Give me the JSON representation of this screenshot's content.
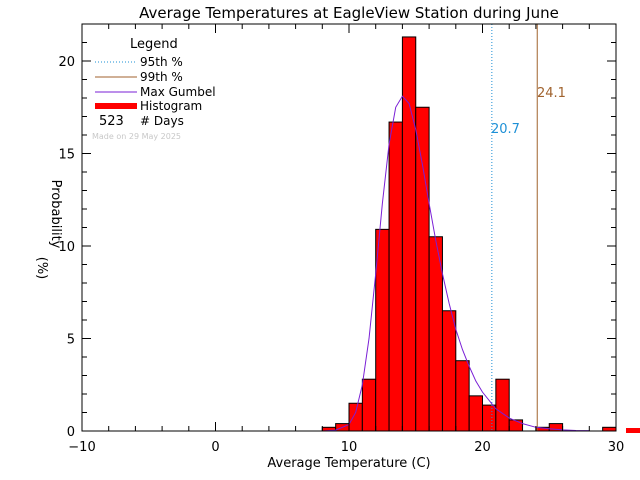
{
  "chart_data": {
    "type": "bar",
    "title": "Average Temperatures at EagleView Station during June",
    "xlabel": "Average Temperature (C)",
    "ylabel_line1": "Probability",
    "ylabel_line2": "(%)",
    "xlim": [
      -10,
      30
    ],
    "ylim": [
      0,
      22
    ],
    "x_ticks": [
      -10,
      0,
      10,
      20,
      30
    ],
    "y_ticks": [
      0,
      5,
      10,
      15,
      20
    ],
    "grid": false,
    "legend": {
      "title": "Legend",
      "placement": "top-left",
      "items": [
        {
          "label": "95th %",
          "style": "dotted",
          "color": "#1e90d6"
        },
        {
          "label": "99th %",
          "style": "solid",
          "color": "#a0622d"
        },
        {
          "label": "Max Gumbel",
          "style": "solid",
          "color": "#7a1fd6"
        },
        {
          "label": "Histogram",
          "style": "thick",
          "color": "#ff0000"
        }
      ],
      "days_count": "523",
      "days_label": "# Days",
      "made_on": "Made on 29 May 2025"
    },
    "percentile_95": {
      "value": 20.7,
      "label": "20.7",
      "color": "#1e90d6"
    },
    "percentile_99": {
      "value": 24.1,
      "label": "24.1",
      "color": "#a0622d"
    },
    "histogram": {
      "bin_width": 1,
      "color": "#ff0000",
      "bins": [
        {
          "start": 8,
          "value": 0.2
        },
        {
          "start": 9,
          "value": 0.4
        },
        {
          "start": 10,
          "value": 1.5
        },
        {
          "start": 11,
          "value": 2.8
        },
        {
          "start": 12,
          "value": 10.9
        },
        {
          "start": 13,
          "value": 16.7
        },
        {
          "start": 14,
          "value": 21.3
        },
        {
          "start": 15,
          "value": 17.5
        },
        {
          "start": 16,
          "value": 10.5
        },
        {
          "start": 17,
          "value": 6.5
        },
        {
          "start": 18,
          "value": 3.8
        },
        {
          "start": 19,
          "value": 1.9
        },
        {
          "start": 20,
          "value": 1.4
        },
        {
          "start": 21,
          "value": 2.8
        },
        {
          "start": 22,
          "value": 0.6
        },
        {
          "start": 24,
          "value": 0.2
        },
        {
          "start": 25,
          "value": 0.4
        },
        {
          "start": 29,
          "value": 0.2
        }
      ]
    },
    "gumbel": {
      "color": "#7a1fd6",
      "x": [
        8,
        9,
        10,
        10.5,
        11,
        11.5,
        12,
        12.5,
        13,
        13.5,
        14,
        14.5,
        15,
        15.5,
        16,
        16.5,
        17,
        17.5,
        18,
        18.5,
        19,
        19.5,
        20,
        21,
        22,
        23,
        24,
        25,
        26,
        27,
        28
      ],
      "y": [
        0,
        0.05,
        0.35,
        1.0,
        2.5,
        5.0,
        8.5,
        12.3,
        15.5,
        17.5,
        18.1,
        17.7,
        16.3,
        14.4,
        12.3,
        10.3,
        8.5,
        6.9,
        5.5,
        4.4,
        3.5,
        2.7,
        2.1,
        1.2,
        0.7,
        0.4,
        0.2,
        0.12,
        0.06,
        0.03,
        0.02
      ]
    }
  }
}
